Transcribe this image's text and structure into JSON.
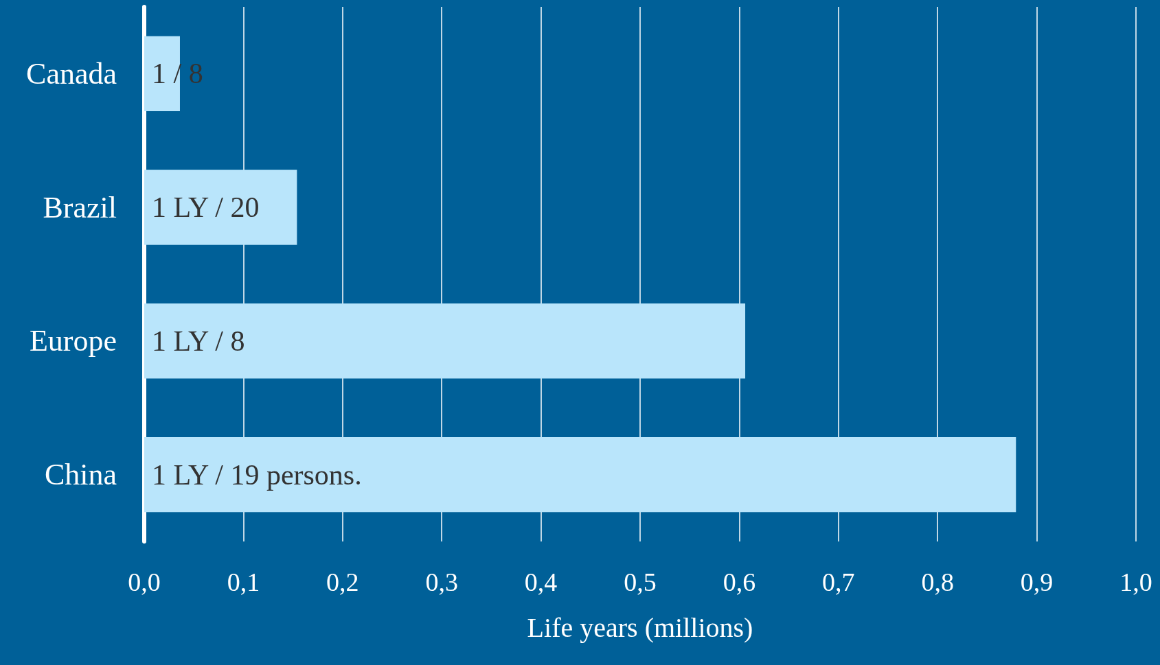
{
  "chart_data": {
    "type": "bar",
    "orientation": "horizontal",
    "xlabel": "Life years (millions)",
    "categories": [
      "Canada",
      "Brazil",
      "Europe",
      "China"
    ],
    "values": [
      0.036,
      0.154,
      0.606,
      0.879
    ],
    "annotations": [
      "1 / 8",
      "1 LY / 20",
      "1 LY / 8",
      "1 LY / 19 persons."
    ],
    "color": "#b9e5fb",
    "xlim": [
      0,
      1
    ],
    "xticks": [
      {
        "value": 0,
        "label": "0,0"
      },
      {
        "value": 0.1,
        "label": "0,1"
      },
      {
        "value": 0.2,
        "label": "0,2"
      },
      {
        "value": 0.3,
        "label": "0,3"
      },
      {
        "value": 0.4,
        "label": "0,4"
      },
      {
        "value": 0.5,
        "label": "0,5"
      },
      {
        "value": 0.6,
        "label": "0,6"
      },
      {
        "value": 0.7,
        "label": "0,7"
      },
      {
        "value": 0.8,
        "label": "0,8"
      },
      {
        "value": 0.9,
        "label": "0,9"
      },
      {
        "value": 1,
        "label": "1,0"
      }
    ],
    "grid": "x"
  }
}
